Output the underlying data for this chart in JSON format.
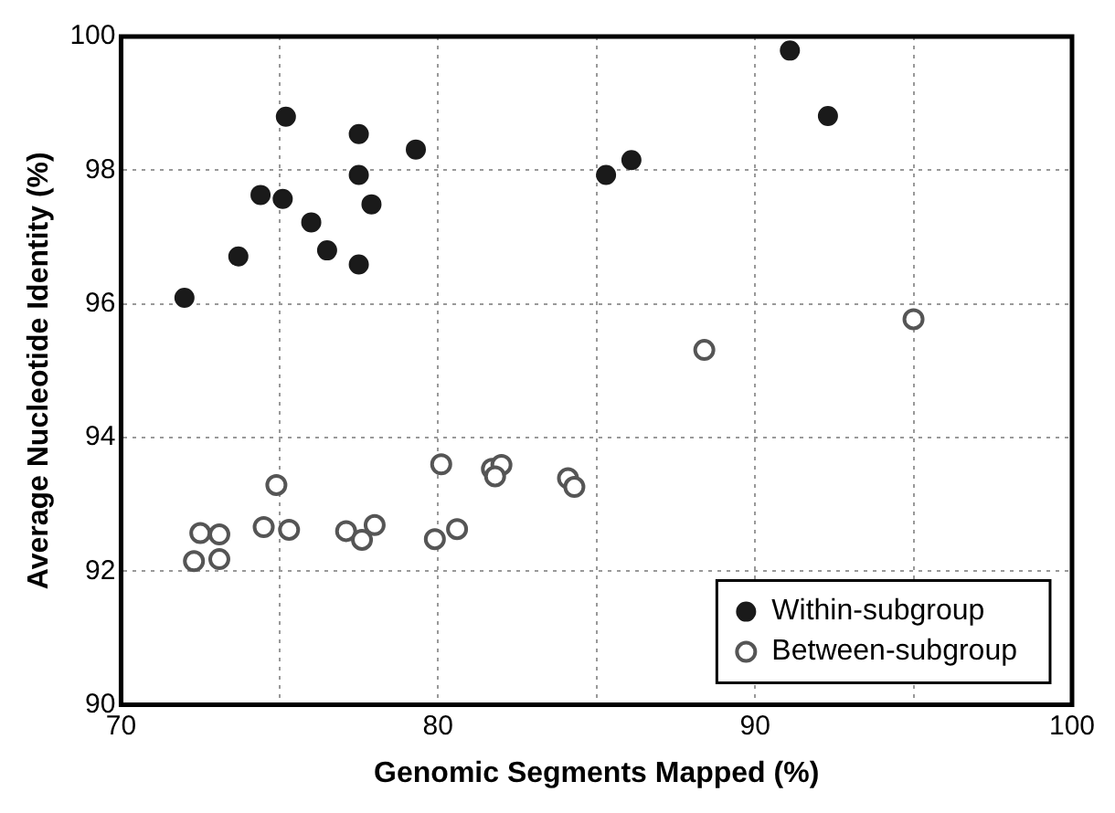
{
  "chart_data": {
    "type": "scatter",
    "xlabel": "Genomic Segments Mapped (%)",
    "ylabel": "Average Nucleotide Identity (%)",
    "xlim": [
      70,
      100
    ],
    "ylim": [
      90,
      100
    ],
    "xticks": [
      70,
      {
        "value": 75,
        "label": null
      },
      80,
      {
        "value": 85,
        "label": null
      },
      90,
      {
        "value": 95,
        "label": null
      },
      100
    ],
    "yticks": [
      90,
      92,
      94,
      96,
      98,
      100
    ],
    "grid": true,
    "legend": "bottom right",
    "marker": "circle",
    "series": [
      {
        "name": "Within-subgroup",
        "color": "#1a1a1a",
        "x": [
          75.2,
          77.5,
          79.3,
          77.5,
          85.3,
          74.4,
          75.1,
          77.9,
          76.0,
          76.5,
          73.7,
          77.5,
          72.0,
          86.1,
          91.1,
          92.3
        ],
        "values": [
          98.8,
          98.54,
          98.31,
          97.93,
          97.93,
          97.63,
          97.57,
          97.49,
          97.22,
          96.8,
          96.71,
          96.59,
          96.09,
          98.15,
          99.79,
          98.81
        ]
      },
      {
        "name": "Between-subgroup",
        "color": "#555555",
        "x": [
          88.4,
          95.0,
          80.1,
          81.7,
          82.0,
          81.8,
          84.1,
          84.3,
          74.9,
          72.5,
          73.1,
          74.5,
          75.3,
          77.1,
          77.6,
          78.0,
          79.9,
          80.6,
          72.3,
          73.1
        ],
        "values": [
          95.31,
          95.77,
          93.6,
          93.53,
          93.59,
          93.42,
          93.39,
          93.26,
          93.29,
          92.57,
          92.55,
          92.66,
          92.62,
          92.6,
          92.47,
          92.69,
          92.48,
          92.63,
          92.15,
          92.18
        ]
      }
    ]
  }
}
